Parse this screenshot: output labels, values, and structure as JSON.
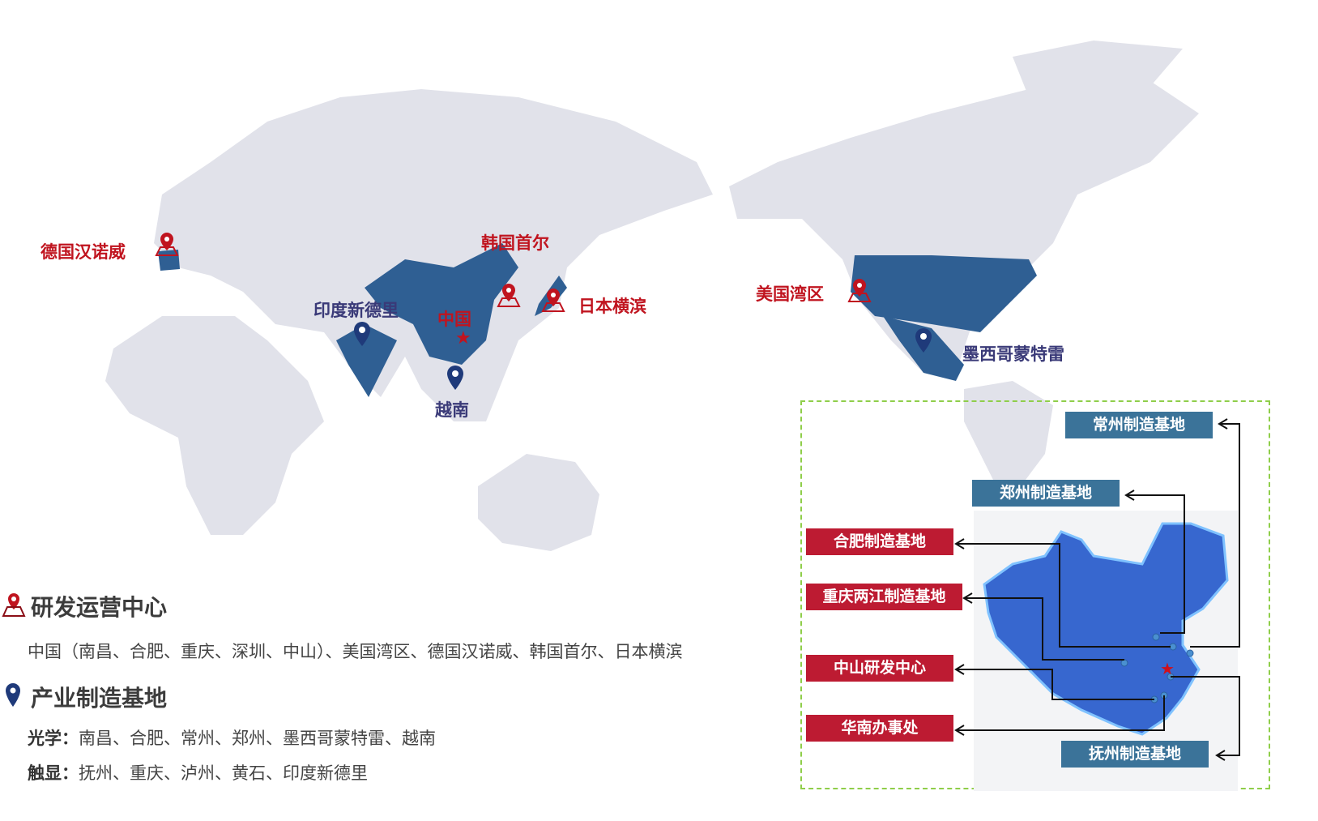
{
  "colors": {
    "land": "#e1e2ea",
    "highlight": "#2f5f93",
    "red": "#c0141f",
    "navy": "#1f3a7a",
    "inset_border": "#8fce4a",
    "box_blue": "#3b7399",
    "box_red": "#bd1b32"
  },
  "world_labels": {
    "germany": "德国汉诺威",
    "korea": "韩国首尔",
    "japan": "日本横滨",
    "usa": "美国湾区",
    "india": "印度新德里",
    "china": "中国",
    "vietnam": "越南",
    "mexico": "墨西哥蒙特雷"
  },
  "legend": {
    "rd_title": "研发运营中心",
    "rd_text": "中国（南昌、合肥、重庆、深圳、中山）、美国湾区、德国汉诺威、韩国首尔、日本横滨",
    "mfg_title": "产业制造基地",
    "optics_label": "光学：",
    "optics_text": "南昌、合肥、常州、郑州、墨西哥蒙特雷、越南",
    "touch_label": "触显：",
    "touch_text": "抚州、重庆、泸州、黄石、印度新德里"
  },
  "inset": {
    "changzhou": "常州制造基地",
    "zhengzhou": "郑州制造基地",
    "hefei": "合肥制造基地",
    "chongqing": "重庆两江制造基地",
    "zhongshan": "中山研发中心",
    "huanan": "华南办事处",
    "fuzhou": "抚州制造基地"
  }
}
